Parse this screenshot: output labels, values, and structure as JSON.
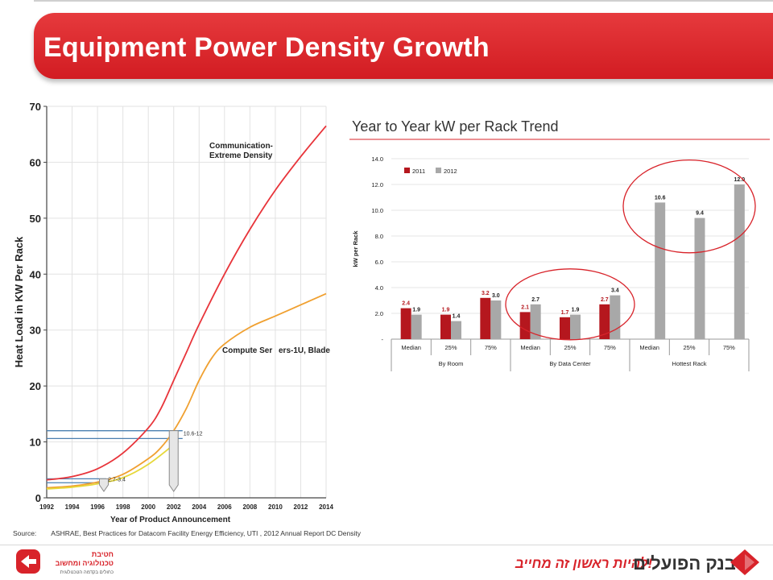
{
  "slide": {
    "title": "Equipment Power Density Growth",
    "source_label": "Source:",
    "source_text": "ASHRAE, Best Practices for Datacom Facility Energy Efficiency,  UTI , 2012 Annual Report DC Density"
  },
  "colors": {
    "title_red": "#d8232a",
    "series_2011": "#b5171e",
    "series_2012": "#a8a8a8",
    "curve_comm": "#e8343a",
    "curve_compute": "#f0a030",
    "curve_low": "#e6d83a",
    "range_line": "#4a7fb0",
    "ellipse": "#d8232a"
  },
  "chart_data": [
    {
      "type": "line",
      "title": "",
      "xlabel": "Year of Product Announcement",
      "ylabel": "Heat Load in KW Per Rack",
      "xlim": [
        1992,
        2014
      ],
      "ylim": [
        0,
        70
      ],
      "x_ticks": [
        "1992",
        "1994",
        "1996",
        "1998",
        "2000",
        "2002",
        "2004",
        "2006",
        "2008",
        "2010",
        "2012",
        "2014"
      ],
      "y_ticks": [
        "0",
        "10",
        "20",
        "30",
        "40",
        "50",
        "60",
        "70"
      ],
      "grid": true,
      "series": [
        {
          "name": "Communication- Extreme Density",
          "name_lines": [
            "Communication-",
            "Extreme Density"
          ],
          "x": [
            1992,
            1994,
            1996,
            1998,
            2000,
            2001,
            2002,
            2003,
            2004,
            2006,
            2008,
            2010,
            2012,
            2014
          ],
          "y": [
            3.2,
            3.8,
            5.2,
            8,
            12.5,
            16,
            21,
            26,
            31,
            40,
            48,
            55,
            61,
            66.5
          ]
        },
        {
          "name": "Compute Servers-1U, Blade",
          "label_left": "Compute Ser",
          "label_right": "ers-1U, Blade",
          "x": [
            1992,
            1994,
            1996,
            1998,
            2000,
            2001,
            2002,
            2003,
            2004,
            2005,
            2006,
            2008,
            2010,
            2012,
            2014
          ],
          "y": [
            1.8,
            2.1,
            2.8,
            4.2,
            7,
            9,
            12,
            16,
            21,
            25,
            27.5,
            30.5,
            32.5,
            34.5,
            36.5
          ]
        },
        {
          "name": "",
          "x": [
            1992,
            1994,
            1996,
            1998,
            2000,
            2002
          ],
          "y": [
            1.6,
            1.9,
            2.5,
            3.6,
            6,
            9.5
          ]
        }
      ],
      "annotations": [
        {
          "text": "10.6-12",
          "year": 2002,
          "from": 10.6,
          "to": 12
        },
        {
          "text": "2.7-3.4",
          "year": 1996,
          "from": 2.7,
          "to": 3.4
        }
      ]
    },
    {
      "type": "bar",
      "title": "Year to Year kW per Rack Trend",
      "ylabel": "kW per Rack",
      "ylim": [
        0,
        14
      ],
      "y_ticks": [
        "14.0",
        "12.0",
        "10.0",
        "8.0",
        "6.0",
        "4.0",
        "2.0",
        "-"
      ],
      "legend": [
        "2011",
        "2012"
      ],
      "legend_position": "top-left",
      "categories": [
        "Median",
        "25%",
        "75%",
        "Median",
        "25%",
        "75%",
        "Median",
        "25%",
        "75%"
      ],
      "groups": [
        "By Room",
        "By Data Center",
        "Hottest Rack"
      ],
      "series": [
        {
          "name": "2011",
          "values": [
            2.4,
            1.9,
            3.2,
            2.1,
            1.7,
            2.7,
            null,
            null,
            null
          ],
          "labels": [
            "2.4",
            "1.9",
            "3.2",
            "2.1",
            "1.7",
            "2.7",
            "",
            "",
            ""
          ]
        },
        {
          "name": "2012",
          "values": [
            1.9,
            1.4,
            3.0,
            2.7,
            1.9,
            3.4,
            10.6,
            9.4,
            12.0
          ],
          "labels": [
            "1.9",
            "1.4",
            "3.0",
            "2.7",
            "1.9",
            "3.4",
            "10.6",
            "9.4",
            "12.0"
          ]
        }
      ]
    }
  ],
  "logos": {
    "left_line1": "חטיבת",
    "left_line2": "טכנולוגיה ומחשוב",
    "left_line3": "כחולים בקדמה הטכנולוגית",
    "right_slogan": "להיות ראשון זה מחייב!",
    "right_name": "בנק הפועלים"
  }
}
